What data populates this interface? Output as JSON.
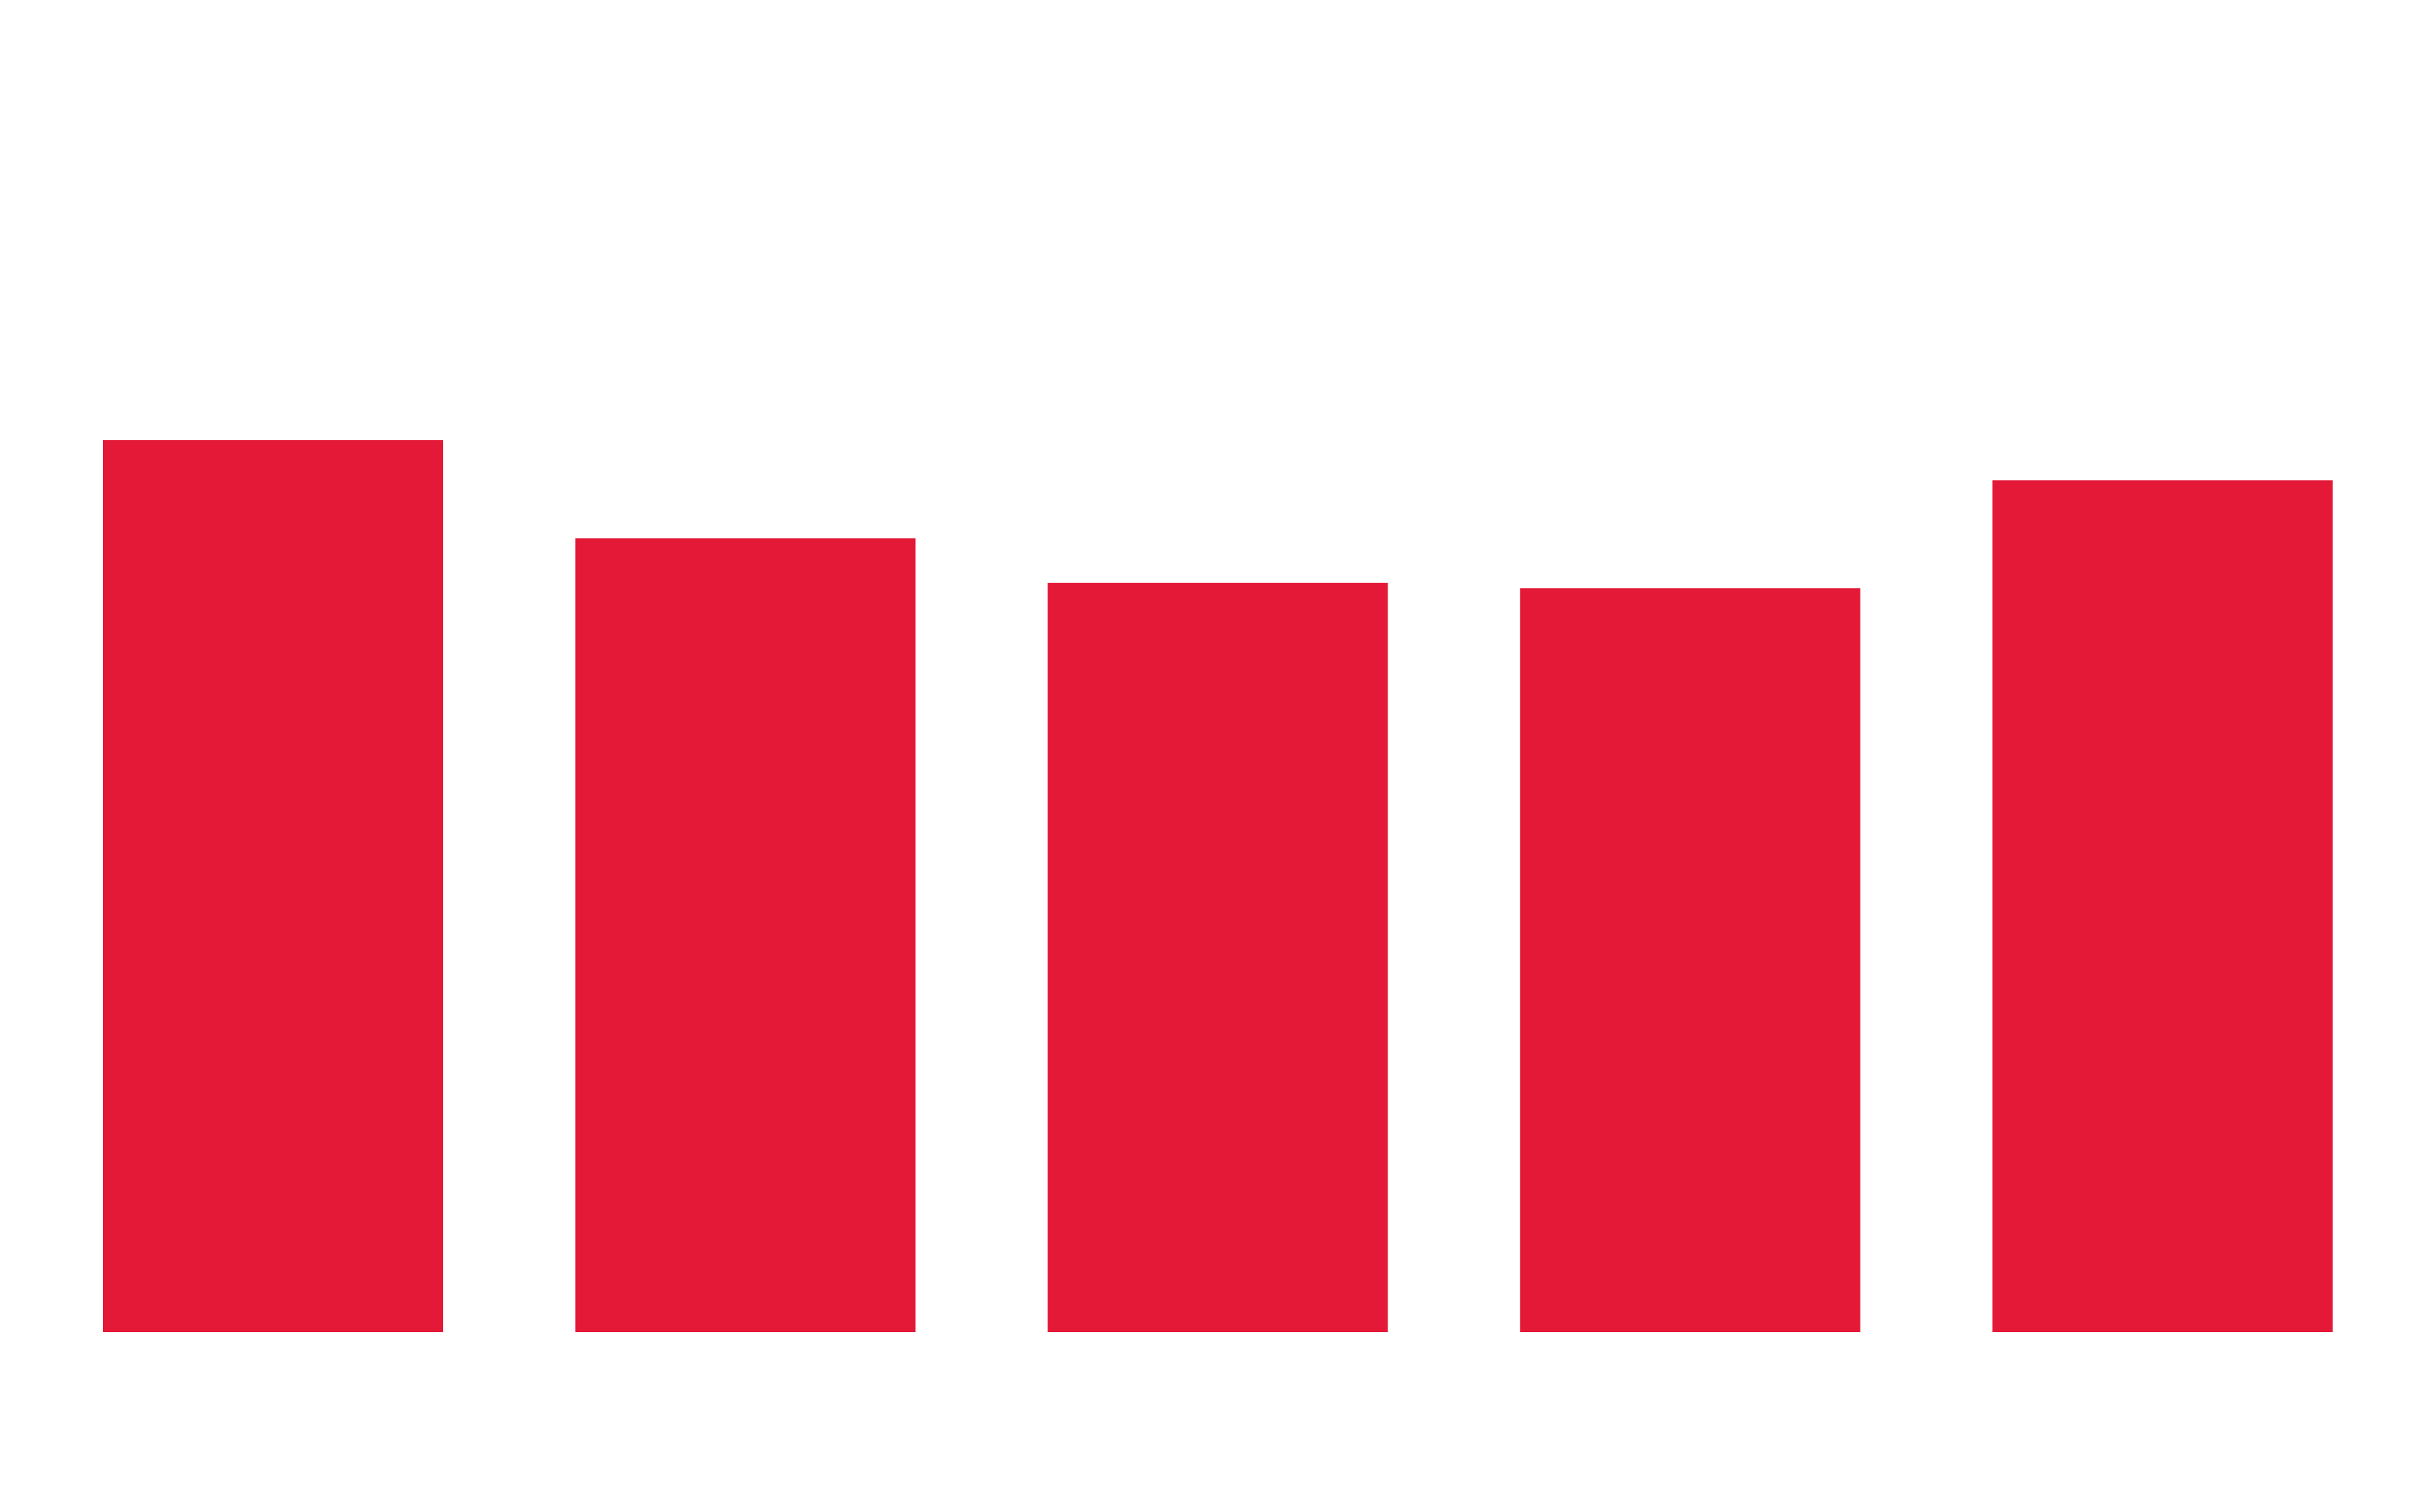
{
  "chart_data": {
    "type": "bar",
    "categories": [
      "",
      "",
      "",
      "",
      ""
    ],
    "values": [
      100,
      89,
      84,
      83.4,
      95.5
    ],
    "ylim": [
      0,
      130
    ],
    "grid": false,
    "colors": {
      "bar": "#e31937",
      "background": "#ffffff"
    }
  }
}
